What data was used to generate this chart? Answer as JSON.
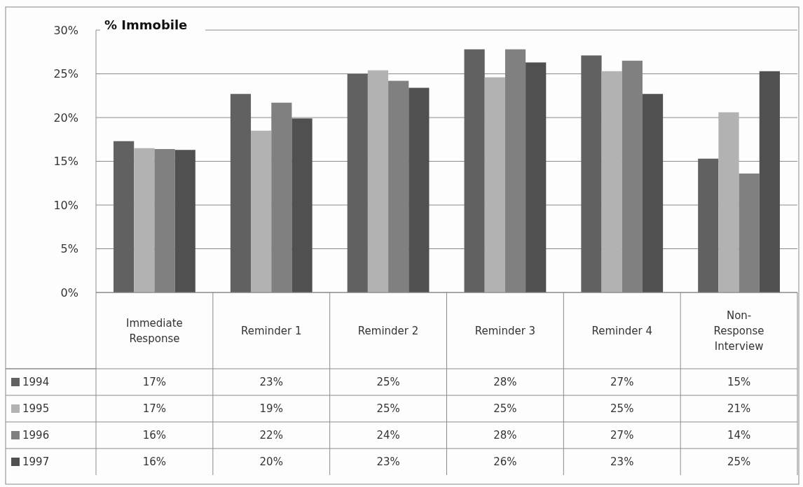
{
  "chart_data": {
    "type": "bar",
    "title": "% Immobile",
    "categories": [
      "Immediate Response",
      "Reminder 1",
      "Reminder 2",
      "Reminder 3",
      "Reminder 4",
      "Non-Response Interview"
    ],
    "series": [
      {
        "name": "1994",
        "color": "#616161",
        "values": [
          17.3,
          22.7,
          25.0,
          27.8,
          27.1,
          15.3
        ],
        "value_labels": [
          "17%",
          "23%",
          "25%",
          "28%",
          "27%",
          "15%"
        ]
      },
      {
        "name": "1995",
        "color": "#b2b2b2",
        "values": [
          16.5,
          18.5,
          25.4,
          24.6,
          25.3,
          20.6
        ],
        "value_labels": [
          "17%",
          "19%",
          "25%",
          "25%",
          "25%",
          "21%"
        ]
      },
      {
        "name": "1996",
        "color": "#808080",
        "values": [
          16.4,
          21.7,
          24.2,
          27.8,
          26.5,
          13.6
        ],
        "value_labels": [
          "16%",
          "22%",
          "24%",
          "28%",
          "27%",
          "14%"
        ]
      },
      {
        "name": "1997",
        "color": "#505050",
        "values": [
          16.3,
          19.9,
          23.4,
          26.3,
          22.7,
          25.3
        ],
        "value_labels": [
          "16%",
          "20%",
          "23%",
          "26%",
          "23%",
          "25%"
        ]
      }
    ],
    "ylim": [
      0,
      30
    ],
    "yticks": [
      {
        "value": 0,
        "label": "0%"
      },
      {
        "value": 5,
        "label": "5%"
      },
      {
        "value": 10,
        "label": "10%"
      },
      {
        "value": 15,
        "label": "15%"
      },
      {
        "value": 20,
        "label": "20%"
      },
      {
        "value": 25,
        "label": "25%"
      },
      {
        "value": 30,
        "label": "30%"
      }
    ],
    "grid": "y",
    "legend": "bottom left"
  }
}
